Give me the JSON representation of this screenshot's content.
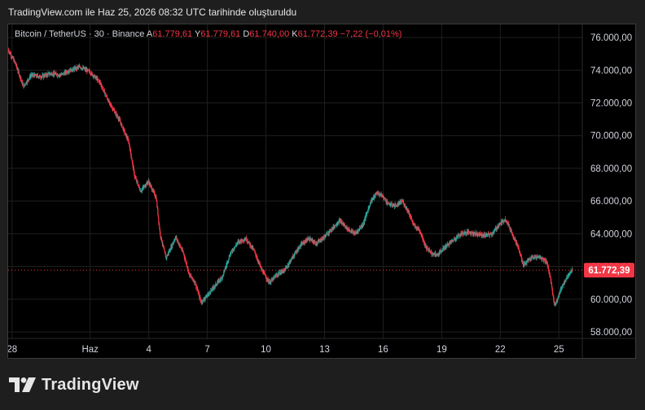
{
  "caption": "TradingView.com ile Haz 25, 2026 08:32 UTC tarihinde oluşturuldu",
  "brand": {
    "name": "TradingView",
    "logo_icon": "tradingview-logo-icon"
  },
  "legend": {
    "symbol": "Bitcoin / TetherUS · 30 · Binance",
    "open_label": "A",
    "open_value": "61.779,61",
    "high_label": "Y",
    "high_value": "61.779,61",
    "low_label": "D",
    "low_value": "61.740,00",
    "close_label": "K",
    "close_value": "61.772,39",
    "change": "−7,22 (−0,01%)"
  },
  "colors": {
    "up": "#26a69a",
    "down": "#f23645",
    "grid": "#1f1f1f",
    "axis_text": "#d1d4dc",
    "price_badge": "#f23645"
  },
  "chart_data": {
    "type": "candlestick",
    "interval": "30",
    "ylim": [
      57600,
      76800
    ],
    "y_ticks": [
      58000,
      60000,
      62000,
      64000,
      66000,
      68000,
      70000,
      72000,
      74000,
      76000
    ],
    "y_tick_labels": [
      "58.000,00",
      "60.000,00",
      "62.000,00",
      "64.000,00",
      "66.000,00",
      "68.000,00",
      "70.000,00",
      "72.000,00",
      "74.000,00",
      "76.000,00"
    ],
    "x_ticks": [
      {
        "label": "28",
        "day": 0
      },
      {
        "label": "Haz",
        "day": 4
      },
      {
        "label": "4",
        "day": 7
      },
      {
        "label": "7",
        "day": 10
      },
      {
        "label": "10",
        "day": 13
      },
      {
        "label": "13",
        "day": 16
      },
      {
        "label": "16",
        "day": 19
      },
      {
        "label": "19",
        "day": 22
      },
      {
        "label": "22",
        "day": 25
      },
      {
        "label": "25",
        "day": 28
      }
    ],
    "xlim_days": [
      -0.2,
      29.2
    ],
    "last_price": 61772.39,
    "last_price_label": "61.772,39",
    "price_path": [
      [
        -0.2,
        75300
      ],
      [
        0.2,
        74400
      ],
      [
        0.6,
        73000
      ],
      [
        1.0,
        73700
      ],
      [
        1.5,
        73600
      ],
      [
        2.0,
        73800
      ],
      [
        2.5,
        73700
      ],
      [
        3.0,
        74000
      ],
      [
        3.5,
        74200
      ],
      [
        4.0,
        73900
      ],
      [
        4.5,
        73300
      ],
      [
        5.0,
        72000
      ],
      [
        5.5,
        71000
      ],
      [
        6.0,
        69600
      ],
      [
        6.3,
        67500
      ],
      [
        6.6,
        66600
      ],
      [
        7.0,
        67200
      ],
      [
        7.4,
        66200
      ],
      [
        7.6,
        64000
      ],
      [
        7.9,
        62500
      ],
      [
        8.4,
        63800
      ],
      [
        8.8,
        62800
      ],
      [
        9.1,
        61500
      ],
      [
        9.4,
        61000
      ],
      [
        9.7,
        59800
      ],
      [
        10.0,
        60200
      ],
      [
        10.4,
        60800
      ],
      [
        10.8,
        61400
      ],
      [
        11.2,
        62800
      ],
      [
        11.6,
        63500
      ],
      [
        12.0,
        63700
      ],
      [
        12.4,
        63000
      ],
      [
        12.8,
        61800
      ],
      [
        13.2,
        61000
      ],
      [
        13.6,
        61500
      ],
      [
        14.0,
        61800
      ],
      [
        14.4,
        62600
      ],
      [
        14.8,
        63300
      ],
      [
        15.2,
        63700
      ],
      [
        15.6,
        63400
      ],
      [
        16.0,
        63800
      ],
      [
        16.4,
        64300
      ],
      [
        16.8,
        64800
      ],
      [
        17.2,
        64300
      ],
      [
        17.6,
        64000
      ],
      [
        18.0,
        64600
      ],
      [
        18.4,
        66000
      ],
      [
        18.7,
        66500
      ],
      [
        19.0,
        66300
      ],
      [
        19.3,
        65800
      ],
      [
        19.7,
        65700
      ],
      [
        20.0,
        66000
      ],
      [
        20.3,
        65400
      ],
      [
        20.6,
        64500
      ],
      [
        20.9,
        64200
      ],
      [
        21.2,
        63200
      ],
      [
        21.5,
        62800
      ],
      [
        21.8,
        62700
      ],
      [
        22.2,
        63200
      ],
      [
        22.6,
        63600
      ],
      [
        23.0,
        64000
      ],
      [
        23.4,
        64100
      ],
      [
        23.8,
        64000
      ],
      [
        24.2,
        63900
      ],
      [
        24.6,
        64000
      ],
      [
        25.0,
        64600
      ],
      [
        25.3,
        64900
      ],
      [
        25.6,
        64100
      ],
      [
        25.9,
        63300
      ],
      [
        26.2,
        62100
      ],
      [
        26.6,
        62500
      ],
      [
        27.0,
        62600
      ],
      [
        27.4,
        62300
      ],
      [
        27.6,
        61200
      ],
      [
        27.8,
        59600
      ],
      [
        28.0,
        60200
      ],
      [
        28.2,
        60800
      ],
      [
        28.5,
        61500
      ],
      [
        28.7,
        61772
      ]
    ]
  }
}
